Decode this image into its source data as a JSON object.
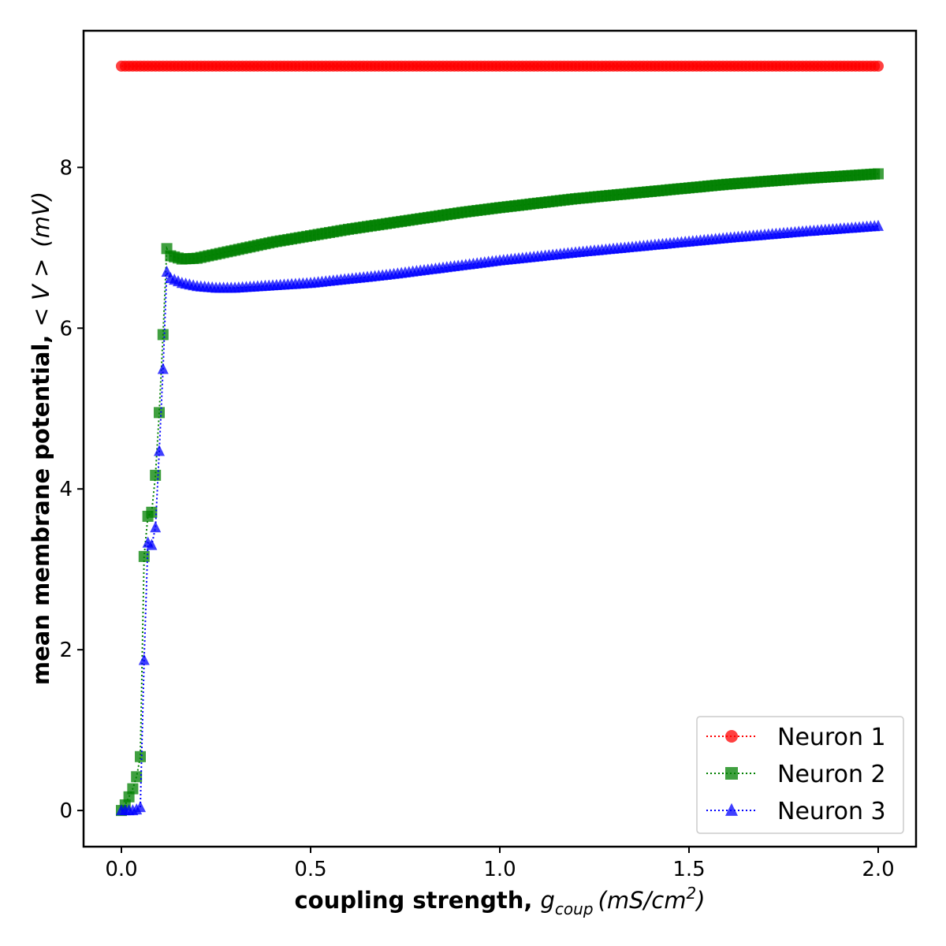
{
  "chart_data": {
    "type": "line",
    "xlabel": {
      "bold": "coupling strength, ",
      "symbol": "g",
      "subscript": "coup",
      "unit_prefix": "(mS/cm",
      "unit_power": "2",
      "unit_suffix": ")"
    },
    "ylabel": {
      "bold": "mean membrane potential, ",
      "symbol": "< V >",
      "unit": "(mV)"
    },
    "xlim": [
      -0.1,
      2.1
    ],
    "ylim": [
      -0.45,
      9.7
    ],
    "xticks": [
      {
        "value": 0.0,
        "label": "0.0"
      },
      {
        "value": 0.5,
        "label": "0.5"
      },
      {
        "value": 1.0,
        "label": "1.0"
      },
      {
        "value": 1.5,
        "label": "1.5"
      },
      {
        "value": 2.0,
        "label": "2.0"
      }
    ],
    "yticks": [
      {
        "value": 0,
        "label": "0"
      },
      {
        "value": 2,
        "label": "2"
      },
      {
        "value": 4,
        "label": "4"
      },
      {
        "value": 6,
        "label": "6"
      },
      {
        "value": 8,
        "label": "8"
      }
    ],
    "grid": false,
    "legend_position": "bottom-right",
    "x": {
      "start": 0.0,
      "end": 2.0,
      "step": 0.01
    },
    "series": [
      {
        "name": "Neuron 1",
        "color": "#ff0000",
        "marker": "circle",
        "line_style": "dotted",
        "constant": 9.26
      },
      {
        "name": "Neuron 2",
        "color": "#008000",
        "marker": "square",
        "line_style": "dotted",
        "initial": [
          0.0,
          0.07,
          0.17,
          0.27,
          0.42,
          0.67,
          3.16,
          3.66,
          3.71,
          4.17,
          4.95,
          5.92,
          6.99,
          6.9
        ],
        "tail_anchors": [
          [
            0.13,
            6.9
          ],
          [
            0.16,
            6.86
          ],
          [
            0.2,
            6.87
          ],
          [
            0.25,
            6.92
          ],
          [
            0.3,
            6.97
          ],
          [
            0.4,
            7.07
          ],
          [
            0.5,
            7.15
          ],
          [
            0.6,
            7.23
          ],
          [
            0.7,
            7.3
          ],
          [
            0.8,
            7.37
          ],
          [
            0.9,
            7.44
          ],
          [
            1.0,
            7.5
          ],
          [
            1.2,
            7.61
          ],
          [
            1.4,
            7.7
          ],
          [
            1.6,
            7.79
          ],
          [
            1.8,
            7.86
          ],
          [
            2.0,
            7.92
          ]
        ]
      },
      {
        "name": "Neuron 3",
        "color": "#0000ff",
        "marker": "triangle",
        "line_style": "dotted",
        "initial": [
          0.0,
          0.0,
          0.0,
          0.0,
          0.01,
          0.04,
          1.87,
          3.33,
          3.3,
          3.52,
          4.47,
          5.49,
          6.7,
          6.62
        ],
        "tail_anchors": [
          [
            0.13,
            6.62
          ],
          [
            0.16,
            6.56
          ],
          [
            0.2,
            6.52
          ],
          [
            0.25,
            6.5
          ],
          [
            0.3,
            6.5
          ],
          [
            0.4,
            6.53
          ],
          [
            0.5,
            6.56
          ],
          [
            0.6,
            6.61
          ],
          [
            0.7,
            6.66
          ],
          [
            0.8,
            6.72
          ],
          [
            0.9,
            6.78
          ],
          [
            1.0,
            6.84
          ],
          [
            1.2,
            6.94
          ],
          [
            1.4,
            7.03
          ],
          [
            1.6,
            7.12
          ],
          [
            1.8,
            7.2
          ],
          [
            2.0,
            7.27
          ]
        ]
      }
    ]
  }
}
